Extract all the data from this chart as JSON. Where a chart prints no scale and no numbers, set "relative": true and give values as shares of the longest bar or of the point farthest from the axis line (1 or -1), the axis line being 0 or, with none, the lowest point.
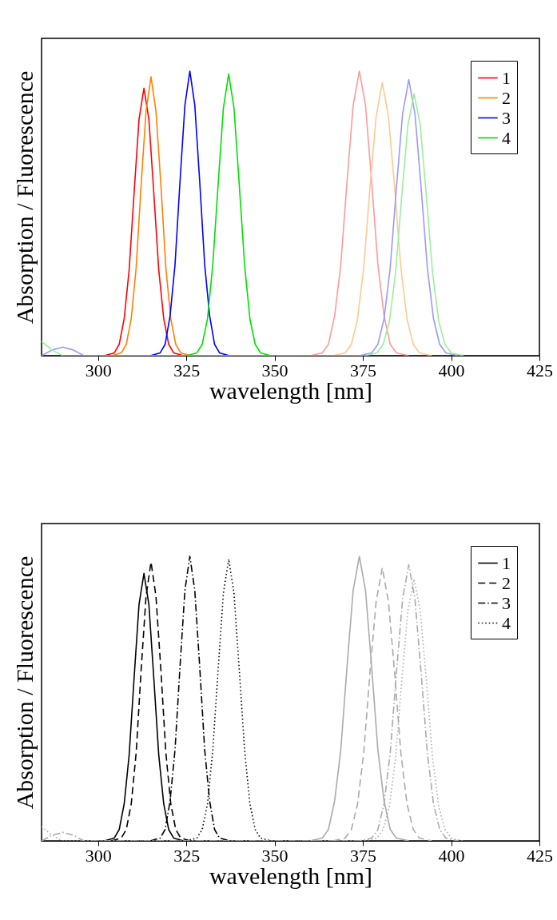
{
  "chart_data": [
    {
      "type": "line",
      "xlabel": "wavelength [nm]",
      "ylabel": "Absorption / Fluorescence",
      "xlim": [
        284,
        425
      ],
      "xticks": [
        300,
        325,
        350,
        375,
        400,
        425
      ],
      "relative": true,
      "grid": false,
      "legend": "top right",
      "series": [
        {
          "name": "1",
          "color": "#ff0000",
          "line_style": "solid",
          "x": [
            301.8,
            304.6,
            306,
            307.4,
            308.8,
            310.2,
            311.6,
            313,
            314.4,
            315.8,
            317.2,
            318.6,
            320,
            321.4,
            324.2
          ],
          "values": [
            0,
            0.01,
            0.04,
            0.13,
            0.3,
            0.57,
            0.83,
            0.94,
            0.83,
            0.57,
            0.3,
            0.13,
            0.04,
            0.01,
            0
          ]
        },
        {
          "name": "2",
          "color": "#ff8000",
          "line_style": "solid",
          "x": [
            303.8,
            306.6,
            308,
            309.4,
            310.8,
            312.2,
            313.6,
            315,
            316.4,
            317.8,
            319.2,
            320.6,
            322,
            323.4,
            326.2
          ],
          "values": [
            0,
            0.01,
            0.04,
            0.13,
            0.31,
            0.6,
            0.86,
            0.98,
            0.86,
            0.6,
            0.31,
            0.13,
            0.04,
            0.01,
            0
          ]
        },
        {
          "name": "3",
          "color": "#0000ff",
          "line_style": "solid",
          "x": [
            314.8,
            317.6,
            319,
            320.4,
            321.8,
            323.2,
            324.6,
            326,
            327.4,
            328.8,
            330.2,
            331.6,
            333,
            334.4,
            337.2
          ],
          "values": [
            0,
            0.01,
            0.04,
            0.14,
            0.32,
            0.61,
            0.88,
            1,
            0.88,
            0.61,
            0.32,
            0.14,
            0.04,
            0.01,
            0
          ]
        },
        {
          "name": "4",
          "color": "#00e000",
          "line_style": "solid",
          "x": [
            325,
            328,
            329.5,
            331,
            332.5,
            334,
            335.5,
            337,
            338.5,
            340,
            341.5,
            343,
            344.5,
            346,
            349
          ],
          "values": [
            0,
            0.01,
            0.04,
            0.13,
            0.32,
            0.6,
            0.87,
            0.99,
            0.87,
            0.6,
            0.32,
            0.13,
            0.04,
            0.01,
            0
          ]
        },
        {
          "color": "#ff9999",
          "line_style": "solid",
          "x": [
            360,
            363.5,
            365.25,
            367,
            368.75,
            370.5,
            372.25,
            374,
            375.75,
            377.5,
            379.25,
            381,
            382.75,
            384.5,
            388
          ],
          "values": [
            0,
            0.01,
            0.04,
            0.14,
            0.32,
            0.61,
            0.88,
            1,
            0.88,
            0.61,
            0.32,
            0.14,
            0.04,
            0.01,
            0
          ]
        },
        {
          "color": "#ffc890",
          "line_style": "solid",
          "x": [
            366.5,
            370,
            371.75,
            373.5,
            375.25,
            377,
            378.75,
            380.5,
            382.25,
            384,
            385.75,
            387.5,
            389.25,
            391,
            394.5
          ],
          "values": [
            0,
            0.01,
            0.04,
            0.13,
            0.31,
            0.59,
            0.84,
            0.96,
            0.84,
            0.59,
            0.31,
            0.13,
            0.04,
            0.01,
            0
          ]
        },
        {
          "color": "#9999ff",
          "line_style": "solid",
          "x": [
            284,
            287,
            290,
            293,
            296,
            374,
            377.5,
            379.25,
            381,
            382.75,
            384.5,
            386.25,
            388,
            389.75,
            391.5,
            393.25,
            395,
            396.75,
            398.5,
            402
          ],
          "values": [
            0,
            0.02,
            0.03,
            0.02,
            0,
            0,
            0.01,
            0.04,
            0.13,
            0.31,
            0.59,
            0.85,
            0.97,
            0.85,
            0.59,
            0.31,
            0.13,
            0.04,
            0.01,
            0
          ]
        },
        {
          "color": "#99f099",
          "line_style": "solid",
          "x": [
            284,
            287,
            290,
            375.5,
            379,
            380.75,
            382.5,
            384.25,
            386,
            387.75,
            389.5,
            391.25,
            393,
            394.75,
            396.5,
            398.25,
            400,
            403.5
          ],
          "values": [
            0.05,
            0.02,
            0,
            0,
            0.01,
            0.04,
            0.12,
            0.29,
            0.56,
            0.81,
            0.92,
            0.81,
            0.56,
            0.29,
            0.12,
            0.04,
            0.01,
            0
          ]
        }
      ]
    },
    {
      "type": "line",
      "xlabel": "wavelength [nm]",
      "ylabel": "Absorption / Fluorescence",
      "xlim": [
        284,
        425
      ],
      "xticks": [
        300,
        325,
        350,
        375,
        400,
        425
      ],
      "relative": true,
      "grid": false,
      "legend": "top right",
      "series": [
        {
          "name": "1",
          "color": "#000000",
          "line_style": "solid",
          "x": [
            301.8,
            304.6,
            306,
            307.4,
            308.8,
            310.2,
            311.6,
            313,
            314.4,
            315.8,
            317.2,
            318.6,
            320,
            321.4,
            324.2
          ],
          "values": [
            0,
            0.01,
            0.04,
            0.13,
            0.3,
            0.57,
            0.83,
            0.94,
            0.83,
            0.57,
            0.3,
            0.13,
            0.04,
            0.01,
            0
          ]
        },
        {
          "name": "2",
          "color": "#000000",
          "line_style": "dashed",
          "x": [
            303.8,
            306.6,
            308,
            309.4,
            310.8,
            312.2,
            313.6,
            315,
            316.4,
            317.8,
            319.2,
            320.6,
            322,
            323.4,
            326.2
          ],
          "values": [
            0,
            0.01,
            0.04,
            0.13,
            0.31,
            0.6,
            0.86,
            0.98,
            0.86,
            0.6,
            0.31,
            0.13,
            0.04,
            0.01,
            0
          ]
        },
        {
          "name": "3",
          "color": "#000000",
          "line_style": "dashdot",
          "x": [
            314.8,
            317.6,
            319,
            320.4,
            321.8,
            323.2,
            324.6,
            326,
            327.4,
            328.8,
            330.2,
            331.6,
            333,
            334.4,
            337.2
          ],
          "values": [
            0,
            0.01,
            0.04,
            0.14,
            0.32,
            0.61,
            0.88,
            1,
            0.88,
            0.61,
            0.32,
            0.14,
            0.04,
            0.01,
            0
          ]
        },
        {
          "name": "4",
          "color": "#000000",
          "line_style": "dotted",
          "x": [
            325,
            328,
            329.5,
            331,
            332.5,
            334,
            335.5,
            337,
            338.5,
            340,
            341.5,
            343,
            344.5,
            346,
            349
          ],
          "values": [
            0,
            0.01,
            0.04,
            0.13,
            0.32,
            0.6,
            0.87,
            0.99,
            0.87,
            0.6,
            0.32,
            0.13,
            0.04,
            0.01,
            0
          ]
        },
        {
          "color": "#aaaaaa",
          "line_style": "solid",
          "x": [
            360,
            363.5,
            365.25,
            367,
            368.75,
            370.5,
            372.25,
            374,
            375.75,
            377.5,
            379.25,
            381,
            382.75,
            384.5,
            388
          ],
          "values": [
            0,
            0.01,
            0.04,
            0.14,
            0.32,
            0.61,
            0.88,
            1,
            0.88,
            0.61,
            0.32,
            0.14,
            0.04,
            0.01,
            0
          ]
        },
        {
          "color": "#aaaaaa",
          "line_style": "dashed",
          "x": [
            366.5,
            370,
            371.75,
            373.5,
            375.25,
            377,
            378.75,
            380.5,
            382.25,
            384,
            385.75,
            387.5,
            389.25,
            391,
            394.5
          ],
          "values": [
            0,
            0.01,
            0.04,
            0.13,
            0.31,
            0.59,
            0.84,
            0.96,
            0.84,
            0.59,
            0.31,
            0.13,
            0.04,
            0.01,
            0
          ]
        },
        {
          "color": "#aaaaaa",
          "line_style": "dashdot",
          "x": [
            284,
            287,
            290,
            293,
            296,
            374,
            377.5,
            379.25,
            381,
            382.75,
            384.5,
            386.25,
            388,
            389.75,
            391.5,
            393.25,
            395,
            396.75,
            398.5,
            402
          ],
          "values": [
            0,
            0.02,
            0.03,
            0.02,
            0,
            0,
            0.01,
            0.04,
            0.13,
            0.31,
            0.59,
            0.85,
            0.97,
            0.85,
            0.59,
            0.31,
            0.13,
            0.04,
            0.01,
            0
          ]
        },
        {
          "color": "#aaaaaa",
          "line_style": "dotted",
          "x": [
            284,
            287,
            290,
            375.5,
            379,
            380.75,
            382.5,
            384.25,
            386,
            387.75,
            389.5,
            391.25,
            393,
            394.75,
            396.5,
            398.25,
            400,
            403.5
          ],
          "values": [
            0.05,
            0.02,
            0,
            0,
            0.01,
            0.04,
            0.12,
            0.29,
            0.56,
            0.81,
            0.92,
            0.81,
            0.56,
            0.29,
            0.12,
            0.04,
            0.01,
            0
          ]
        }
      ]
    }
  ]
}
